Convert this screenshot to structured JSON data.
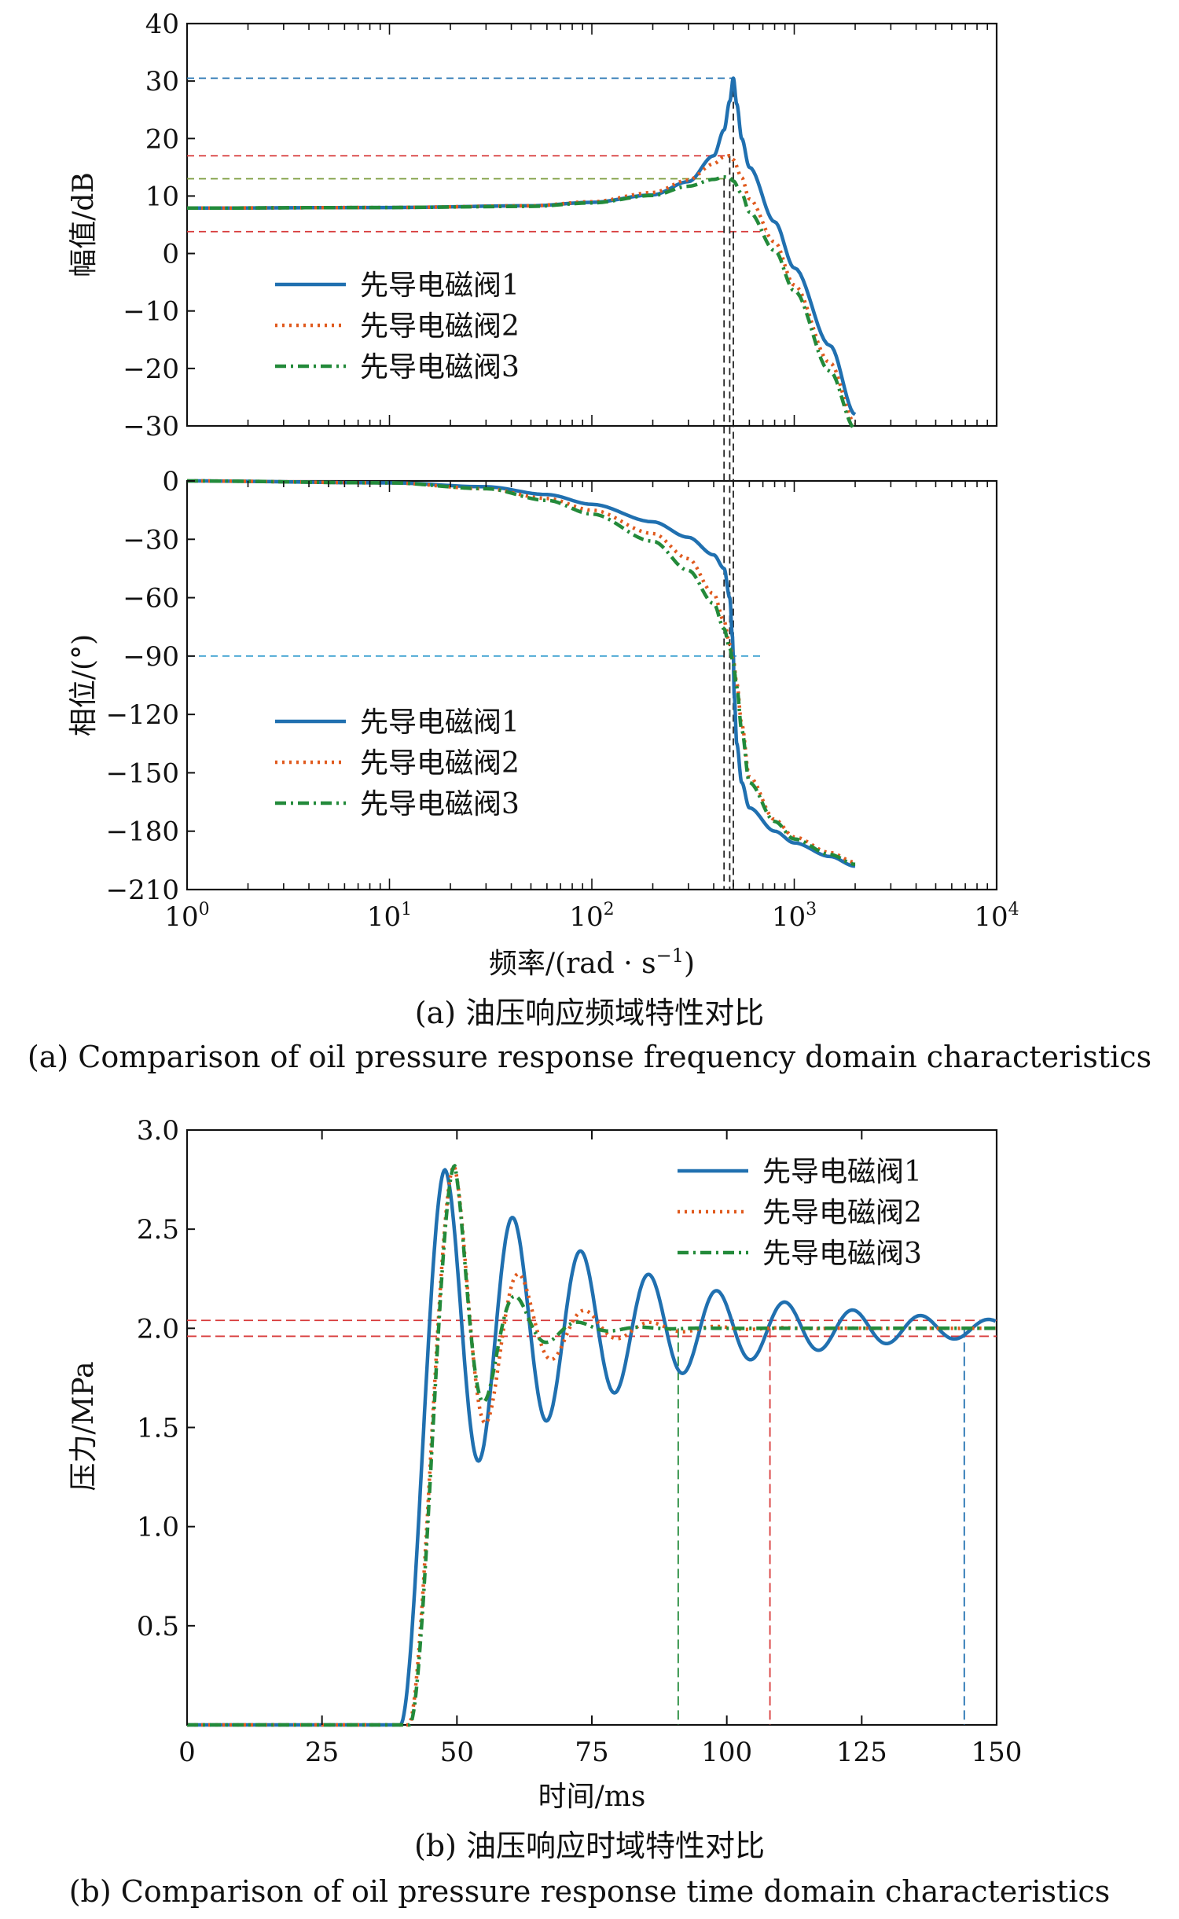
{
  "chart_data": [
    {
      "id": "magnitude",
      "type": "line",
      "x_scale": "log",
      "xlim": [
        1,
        10000
      ],
      "ylim": [
        -30,
        40
      ],
      "yticks": [
        40,
        30,
        20,
        10,
        0,
        -10,
        -20,
        -30
      ],
      "ylabel": "幅值/dB",
      "legend": {
        "placement": "center-left"
      },
      "series": [
        {
          "name": "先导电磁阀1",
          "color": "#2070b0",
          "dash": "solid",
          "x": [
            1,
            10,
            50,
            100,
            200,
            300,
            400,
            450,
            480,
            500,
            520,
            550,
            600,
            800,
            1000,
            1500,
            2000
          ],
          "y": [
            7.9,
            8.0,
            8.3,
            8.9,
            10.2,
            12.5,
            17.0,
            21.5,
            26.5,
            30.5,
            26.0,
            20.0,
            15.0,
            5.5,
            -2.5,
            -16.0,
            -28.0
          ]
        },
        {
          "name": "先导电磁阀2",
          "color": "#e05a1e",
          "dash": "dotted",
          "x": [
            1,
            10,
            50,
            100,
            200,
            300,
            400,
            450,
            480,
            500,
            550,
            600,
            800,
            1000,
            1500,
            2000
          ],
          "y": [
            7.9,
            8.0,
            8.3,
            9.0,
            10.6,
            12.8,
            15.6,
            16.8,
            17.0,
            16.3,
            13.2,
            9.5,
            2.0,
            -5.5,
            -19.0,
            -29.5
          ]
        },
        {
          "name": "先导电磁阀3",
          "color": "#238a3a",
          "dash": "dashdot",
          "x": [
            1,
            10,
            50,
            100,
            200,
            300,
            400,
            450,
            480,
            500,
            550,
            600,
            800,
            1000,
            1500,
            2000
          ],
          "y": [
            7.9,
            8.0,
            8.2,
            8.8,
            10.1,
            11.7,
            12.9,
            13.3,
            13.2,
            12.6,
            10.4,
            7.2,
            0.5,
            -6.5,
            -20.5,
            -30.5
          ]
        }
      ],
      "reference_lines": [
        {
          "type": "h",
          "y": 30.5,
          "x_end": 500,
          "color": "#2070b0"
        },
        {
          "type": "h",
          "y": 17,
          "x_end": 480,
          "color": "#d83a3a"
        },
        {
          "type": "h",
          "y": 13,
          "x_end": 450,
          "color": "#7a9a3a"
        },
        {
          "type": "h",
          "y": 3.8,
          "x_end": 720,
          "color": "#d83a3a"
        }
      ]
    },
    {
      "id": "phase",
      "type": "line",
      "x_scale": "log",
      "xlim": [
        1,
        10000
      ],
      "ylim": [
        -210,
        0
      ],
      "yticks": [
        0,
        -30,
        -60,
        -90,
        -120,
        -150,
        -180,
        -210
      ],
      "xticks": [
        {
          "value": 1,
          "base": "10",
          "exp": "0"
        },
        {
          "value": 10,
          "base": "10",
          "exp": "1"
        },
        {
          "value": 100,
          "base": "10",
          "exp": "2"
        },
        {
          "value": 1000,
          "base": "10",
          "exp": "3"
        },
        {
          "value": 10000,
          "base": "10",
          "exp": "4"
        }
      ],
      "ylabel": "相位/(°)",
      "xlabel": {
        "main": "频率/(rad · s",
        "sup": "−1",
        "tail": ")"
      },
      "legend": {
        "placement": "bottom-left"
      },
      "series": [
        {
          "name": "先导电磁阀1",
          "color": "#2070b0",
          "dash": "solid",
          "x": [
            1,
            10,
            30,
            60,
            100,
            200,
            300,
            400,
            450,
            480,
            495,
            500,
            505,
            520,
            550,
            600,
            800,
            1000,
            1500,
            2000
          ],
          "y": [
            0,
            -1,
            -3,
            -7,
            -12,
            -21,
            -29,
            -38,
            -45,
            -60,
            -80,
            -90,
            -110,
            -135,
            -155,
            -168,
            -180,
            -186,
            -193,
            -198
          ]
        },
        {
          "name": "先导电磁阀2",
          "color": "#e05a1e",
          "dash": "dotted",
          "x": [
            1,
            10,
            30,
            60,
            100,
            200,
            300,
            400,
            450,
            480,
            500,
            520,
            550,
            600,
            800,
            1000,
            1500,
            2000
          ],
          "y": [
            0,
            -1,
            -4,
            -9,
            -15,
            -27,
            -40,
            -58,
            -72,
            -84,
            -92,
            -104,
            -125,
            -152,
            -174,
            -183,
            -191,
            -196
          ]
        },
        {
          "name": "先导电磁阀3",
          "color": "#238a3a",
          "dash": "dashdot",
          "x": [
            1,
            10,
            30,
            60,
            100,
            200,
            300,
            400,
            450,
            480,
            500,
            520,
            550,
            600,
            800,
            1000,
            1500,
            2000
          ],
          "y": [
            0,
            -1,
            -4,
            -10,
            -17,
            -31,
            -46,
            -63,
            -76,
            -86,
            -94,
            -106,
            -128,
            -155,
            -175,
            -184,
            -192,
            -197
          ]
        }
      ],
      "reference_lines": [
        {
          "type": "h",
          "y": -90,
          "x_end": 700,
          "color": "#3aa0d0"
        }
      ],
      "cross_panel_lines": [
        {
          "type": "v",
          "x": 450,
          "y_top": 13,
          "color": "#222"
        },
        {
          "type": "v",
          "x": 480,
          "y_top": 17,
          "color": "#222"
        },
        {
          "type": "v",
          "x": 500,
          "y_top": 30.5,
          "color": "#222"
        }
      ]
    },
    {
      "id": "time",
      "type": "line",
      "xlim": [
        0,
        150
      ],
      "ylim": [
        0,
        3.0
      ],
      "xticks": [
        0,
        25,
        50,
        75,
        100,
        125,
        150
      ],
      "yticks": [
        3.0,
        2.5,
        2.0,
        1.5,
        1.0,
        0.5
      ],
      "ytick_labels": [
        "3.0",
        "2.5",
        "2.0",
        "1.5",
        "1.0",
        "0.5"
      ],
      "xlabel": "时间/ms",
      "ylabel": "压力/MPa",
      "legend": {
        "placement": "top-right"
      },
      "series": [
        {
          "name": "先导电磁阀1",
          "color": "#2070b0",
          "dash": "solid",
          "t0": 39.5,
          "rise": 8.3,
          "final": 2.0,
          "overshoot": 0.8,
          "period": 12.6,
          "tau": 35
        },
        {
          "name": "先导电磁阀2",
          "color": "#e05a1e",
          "dash": "dotted",
          "t0": 41.0,
          "rise": 8.5,
          "final": 2.0,
          "overshoot": 0.82,
          "period": 12.2,
          "tau": 11
        },
        {
          "name": "先导电磁阀3",
          "color": "#238a3a",
          "dash": "dashdot",
          "t0": 41.2,
          "rise": 8.4,
          "final": 2.0,
          "overshoot": 0.82,
          "period": 11.6,
          "tau": 7
        }
      ],
      "reference_lines": [
        {
          "type": "h",
          "y": 2.04,
          "color": "#d83a3a"
        },
        {
          "type": "h",
          "y": 1.96,
          "color": "#d83a3a"
        },
        {
          "type": "v",
          "x": 91,
          "color": "#238a3a"
        },
        {
          "type": "v",
          "x": 108,
          "color": "#d83a3a"
        },
        {
          "type": "v",
          "x": 144,
          "color": "#2070b0"
        }
      ]
    }
  ],
  "captions": {
    "a_zh": "(a) 油压响应频域特性对比",
    "a_en": "(a) Comparison of oil pressure response frequency domain characteristics",
    "b_zh": "(b) 油压响应时域特性对比",
    "b_en": "(b) Comparison of oil pressure response time domain characteristics"
  }
}
